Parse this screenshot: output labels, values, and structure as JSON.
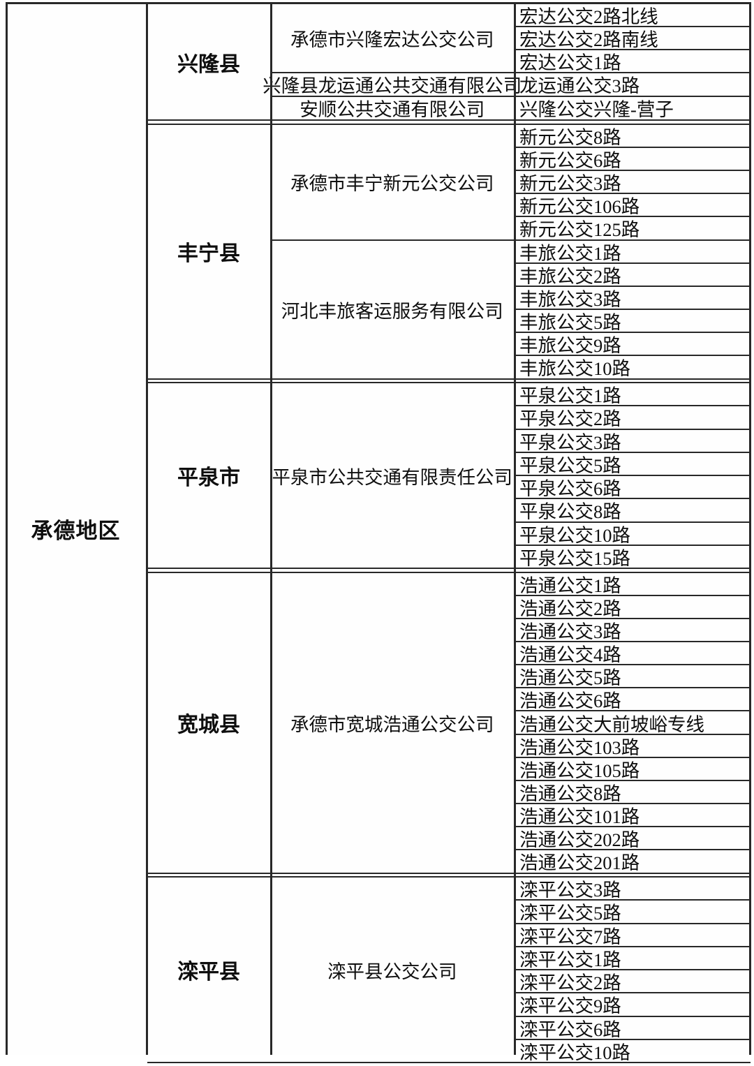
{
  "page": {
    "background_color": "#ffffff",
    "border_color": "#282828",
    "text_color": "#0e0e0e"
  },
  "table": {
    "region": {
      "label": "承德地区"
    },
    "sections": [
      {
        "county": "兴隆县",
        "groups": [
          {
            "company": "承德市兴隆宏达公交公司",
            "routes": [
              "宏达公交2路北线",
              "宏达公交2路南线",
              "宏达公交1路"
            ]
          },
          {
            "company": "兴隆县龙运通公共交通有限公司",
            "routes": [
              "龙运通公交3路"
            ]
          },
          {
            "company": "安顺公共交通有限公司",
            "routes": [
              "兴隆公交兴隆-营子"
            ]
          }
        ]
      },
      {
        "county": "丰宁县",
        "groups": [
          {
            "company": "承德市丰宁新元公交公司",
            "routes": [
              "新元公交8路",
              "新元公交6路",
              "新元公交3路",
              "新元公交106路",
              "新元公交125路"
            ]
          },
          {
            "company": "河北丰旅客运服务有限公司",
            "routes": [
              "丰旅公交1路",
              "丰旅公交2路",
              "丰旅公交3路",
              "丰旅公交5路",
              "丰旅公交9路",
              "丰旅公交10路"
            ]
          }
        ]
      },
      {
        "county": "平泉市",
        "groups": [
          {
            "company": "平泉市公共交通有限责任公司",
            "routes": [
              "平泉公交1路",
              "平泉公交2路",
              "平泉公交3路",
              "平泉公交5路",
              "平泉公交6路",
              "平泉公交8路",
              "平泉公交10路",
              "平泉公交15路"
            ]
          }
        ]
      },
      {
        "county": "宽城县",
        "groups": [
          {
            "company": "承德市宽城浩通公交公司",
            "routes": [
              "浩通公交1路",
              "浩通公交2路",
              "浩通公交3路",
              "浩通公交4路",
              "浩通公交5路",
              "浩通公交6路",
              "浩通公交大前坡峪专线",
              "浩通公交103路",
              "浩通公交105路",
              "浩通公交8路",
              "浩通公交101路",
              "浩通公交202路",
              "浩通公交201路"
            ]
          }
        ]
      },
      {
        "county": "滦平县",
        "groups": [
          {
            "company": "滦平县公交公司",
            "routes": [
              "滦平公交3路",
              "滦平公交5路",
              "滦平公交7路",
              "滦平公交1路",
              "滦平公交2路",
              "滦平公交9路",
              "滦平公交6路",
              "滦平公交10路"
            ]
          }
        ]
      }
    ]
  }
}
